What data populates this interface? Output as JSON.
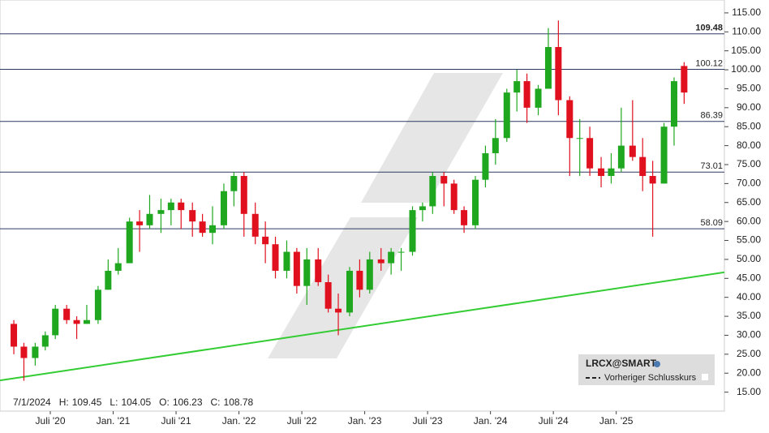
{
  "chart_data": {
    "type": "candlestick",
    "x": [
      2020.21,
      2020.29,
      2020.38,
      2020.46,
      2020.54,
      2020.63,
      2020.71,
      2020.79,
      2020.88,
      2020.96,
      2021.04,
      2021.13,
      2021.21,
      2021.29,
      2021.38,
      2021.46,
      2021.54,
      2021.63,
      2021.71,
      2021.79,
      2021.88,
      2021.96,
      2022.04,
      2022.13,
      2022.21,
      2022.29,
      2022.38,
      2022.46,
      2022.54,
      2022.63,
      2022.71,
      2022.79,
      2022.88,
      2022.96,
      2023.04,
      2023.13,
      2023.21,
      2023.29,
      2023.38,
      2023.46,
      2023.54,
      2023.63,
      2023.71,
      2023.79,
      2023.88,
      2023.96,
      2024.04,
      2024.13,
      2024.21,
      2024.29,
      2024.38,
      2024.46,
      2024.54,
      2024.63,
      2024.71,
      2024.79,
      2024.88,
      2024.96,
      2025.04,
      2025.13,
      2025.21,
      2025.29,
      2025.38,
      2025.46,
      2025.54
    ],
    "open": [
      33,
      27,
      24,
      27,
      30,
      37,
      34,
      33,
      34,
      42,
      47,
      49,
      60,
      59,
      62,
      63,
      65,
      63,
      60,
      57,
      59,
      68,
      72,
      62,
      56,
      54,
      47,
      52,
      43,
      50,
      44,
      37,
      36,
      47,
      42,
      50,
      49,
      52,
      52,
      63,
      64,
      72,
      70,
      63,
      59,
      71,
      78,
      82,
      94,
      97,
      90,
      95,
      106,
      92,
      82,
      82,
      74,
      72,
      74,
      80,
      77,
      72,
      70,
      85,
      101
    ],
    "high": [
      34,
      28,
      28,
      31,
      38,
      38,
      35,
      38,
      43,
      50,
      53,
      61,
      63,
      67,
      66,
      66,
      66,
      65,
      62,
      64,
      70,
      73,
      73,
      65,
      60,
      56,
      55,
      53,
      53,
      53,
      46,
      41,
      48,
      50,
      52,
      53,
      53,
      53,
      64,
      65,
      73,
      73,
      71,
      64,
      72,
      80,
      87,
      95,
      100,
      99,
      96,
      111,
      113,
      93,
      87,
      85,
      77,
      78,
      90,
      92,
      82,
      76,
      86,
      98,
      102
    ],
    "low": [
      25,
      18,
      22,
      26,
      29,
      33,
      29,
      33,
      33,
      42,
      46,
      49,
      52,
      58,
      57,
      59,
      58,
      56,
      56,
      54,
      58,
      64,
      56,
      54,
      49,
      45,
      45,
      41,
      38,
      43,
      36,
      30,
      35,
      40,
      41,
      47,
      46,
      47,
      51,
      60,
      62,
      64,
      62,
      57,
      58,
      69,
      75,
      81,
      89,
      86,
      88,
      95,
      88,
      72,
      72,
      72,
      69,
      70,
      73,
      76,
      68,
      56,
      70,
      80,
      91
    ],
    "close": [
      27,
      24,
      27,
      30,
      37,
      34,
      33,
      34,
      42,
      47,
      49,
      60,
      59,
      62,
      63,
      65,
      63,
      60,
      57,
      59,
      68,
      72,
      62,
      56,
      54,
      47,
      52,
      43,
      50,
      44,
      37,
      36,
      47,
      42,
      50,
      49,
      52,
      52,
      63,
      64,
      72,
      70,
      63,
      59,
      71,
      78,
      82,
      94,
      97,
      90,
      95,
      106,
      92,
      82,
      82,
      74,
      72,
      74,
      80,
      77,
      72,
      70,
      85,
      97,
      94
    ],
    "up_color": "#1fa81f",
    "down_color": "#e0101e",
    "xlim": [
      2020.1,
      2025.86
    ],
    "ylim": [
      10,
      118.4
    ],
    "xticks": [
      {
        "value": 2020.5,
        "label": "Juli '20"
      },
      {
        "value": 2021.0,
        "label": "Jan. '21"
      },
      {
        "value": 2021.5,
        "label": "Juli '21"
      },
      {
        "value": 2022.0,
        "label": "Jan. '22"
      },
      {
        "value": 2022.5,
        "label": "Juli '22"
      },
      {
        "value": 2023.0,
        "label": "Jan. '23"
      },
      {
        "value": 2023.5,
        "label": "Juli '23"
      },
      {
        "value": 2024.0,
        "label": "Jan. '24"
      },
      {
        "value": 2024.5,
        "label": "Juli '24"
      },
      {
        "value": 2025.0,
        "label": "Jan. '25"
      }
    ],
    "yticks": [
      {
        "value": 15,
        "label": "15.00"
      },
      {
        "value": 20,
        "label": "20.00"
      },
      {
        "value": 25,
        "label": "25.00"
      },
      {
        "value": 30,
        "label": "30.00"
      },
      {
        "value": 35,
        "label": "35.00"
      },
      {
        "value": 40,
        "label": "40.00"
      },
      {
        "value": 45,
        "label": "45.00"
      },
      {
        "value": 50,
        "label": "50.00"
      },
      {
        "value": 55,
        "label": "55.00"
      },
      {
        "value": 60,
        "label": "60.00"
      },
      {
        "value": 65,
        "label": "65.00"
      },
      {
        "value": 70,
        "label": "70.00"
      },
      {
        "value": 75,
        "label": "75.00"
      },
      {
        "value": 80,
        "label": "80.00"
      },
      {
        "value": 85,
        "label": "85.00"
      },
      {
        "value": 90,
        "label": "90.00"
      },
      {
        "value": 95,
        "label": "95.00"
      },
      {
        "value": 100,
        "label": "100.00"
      },
      {
        "value": 105,
        "label": "105.00"
      },
      {
        "value": 110,
        "label": "110.00"
      },
      {
        "value": 115,
        "label": "115.00"
      }
    ],
    "levels": [
      109.48,
      100.12,
      86.39,
      73.01,
      58.09
    ],
    "level_color": "#2a3a60",
    "trendline": {
      "x": [
        2020.1,
        2025.86
      ],
      "y": [
        18.1,
        46.6
      ],
      "color": "#33cc33"
    },
    "info": {
      "date": "7/1/2024",
      "items": [
        {
          "label": "H:",
          "value": 109.45
        },
        {
          "label": "L:",
          "value": 104.05
        },
        {
          "label": "O:",
          "value": 106.23
        },
        {
          "label": "C:",
          "value": 108.78
        }
      ]
    },
    "legend": {
      "symbol": "LRCX@SMART",
      "line": "Vorheriger Schlusskurs"
    }
  }
}
